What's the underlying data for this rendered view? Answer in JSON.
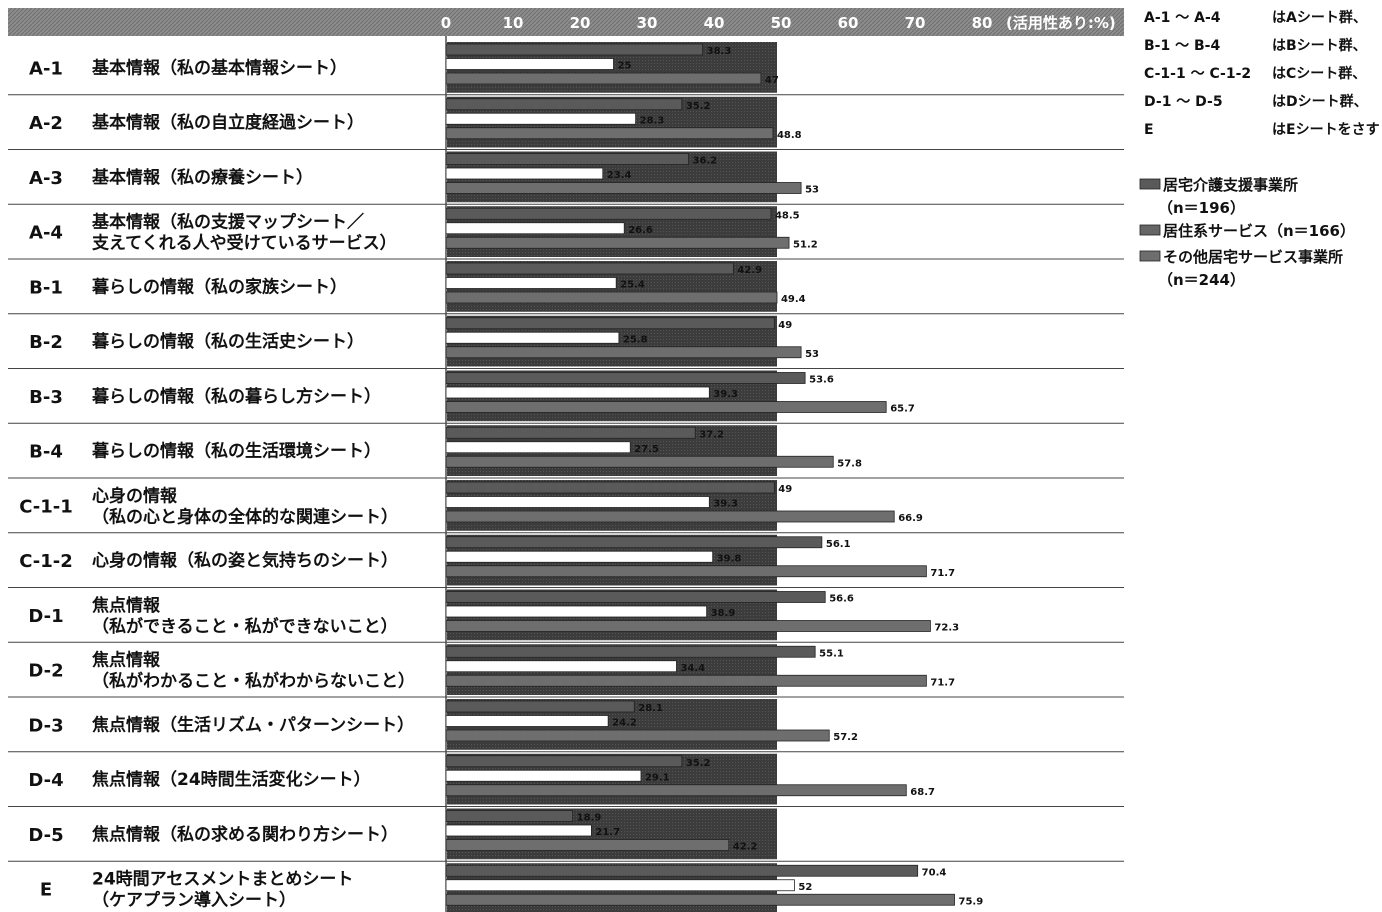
{
  "chart_data": {
    "type": "bar",
    "orientation": "horizontal",
    "axis_unit_label": "(活用性あり:%)",
    "x_ticks": [
      0,
      10,
      20,
      30,
      40,
      50,
      60,
      70,
      80
    ],
    "xlim": [
      0,
      100
    ],
    "categories": [
      {
        "code": "A-1",
        "label": [
          "基本情報（私の基本情報シート）"
        ]
      },
      {
        "code": "A-2",
        "label": [
          "基本情報（私の自立度経過シート）"
        ]
      },
      {
        "code": "A-3",
        "label": [
          "基本情報（私の療養シート）"
        ]
      },
      {
        "code": "A-4",
        "label": [
          "基本情報（私の支援マップシート／",
          "支えてくれる人や受けているサービス）"
        ]
      },
      {
        "code": "B-1",
        "label": [
          "暮らしの情報（私の家族シート）"
        ]
      },
      {
        "code": "B-2",
        "label": [
          "暮らしの情報（私の生活史シート）"
        ]
      },
      {
        "code": "B-3",
        "label": [
          "暮らしの情報（私の暮らし方シート）"
        ]
      },
      {
        "code": "B-4",
        "label": [
          "暮らしの情報（私の生活環境シート）"
        ]
      },
      {
        "code": "C-1-1",
        "label": [
          "心身の情報",
          "（私の心と身体の全体的な関連シート）"
        ]
      },
      {
        "code": "C-1-2",
        "label": [
          "心身の情報（私の姿と気持ちのシート）"
        ]
      },
      {
        "code": "D-1",
        "label": [
          "焦点情報",
          "（私ができること・私ができないこと）"
        ]
      },
      {
        "code": "D-2",
        "label": [
          "焦点情報",
          "（私がわかること・私がわからないこと）"
        ]
      },
      {
        "code": "D-3",
        "label": [
          "焦点情報（生活リズム・パターンシート）"
        ]
      },
      {
        "code": "D-4",
        "label": [
          "焦点情報（24時間生活変化シート）"
        ]
      },
      {
        "code": "D-5",
        "label": [
          "焦点情報（私の求める関わり方シート）"
        ]
      },
      {
        "code": "E",
        "label": [
          "24時間アセスメントまとめシート",
          "（ケアプラン導入シート）"
        ]
      }
    ],
    "series": [
      {
        "name": "居宅介護支援事業所",
        "n": "（n＝196）",
        "color": "#5a5a5a",
        "values": [
          38.3,
          35.2,
          36.2,
          48.5,
          42.9,
          49,
          53.6,
          37.2,
          49,
          56.1,
          56.6,
          55.1,
          28.1,
          35.2,
          18.9,
          70.4
        ]
      },
      {
        "name": "居住系サービス",
        "n": "（n＝166）",
        "color": "#ffffff",
        "values": [
          25,
          28.3,
          23.4,
          26.6,
          25.4,
          25.8,
          39.3,
          27.5,
          39.3,
          39.8,
          38.9,
          34.4,
          24.2,
          29.1,
          21.7,
          52
        ]
      },
      {
        "name": "その他居宅サービス事業所",
        "n": "（n＝244）",
        "color": "#6e6e6e",
        "values": [
          47,
          48.8,
          53,
          51.2,
          49.4,
          53,
          65.7,
          57.8,
          66.9,
          71.7,
          72.3,
          71.7,
          57.2,
          68.7,
          42.2,
          75.9
        ]
      }
    ],
    "notes": [
      {
        "range": "A-1 〜 A-4",
        "text": "はAシート群、"
      },
      {
        "range": "B-1 〜 B-4",
        "text": "はBシート群、"
      },
      {
        "range": "C-1-1 〜 C-1-2",
        "text": "はCシート群、"
      },
      {
        "range": "D-1 〜 D-5",
        "text": "はDシート群、"
      },
      {
        "range": "E",
        "text": "はEシートをさす"
      }
    ]
  },
  "colors": {
    "header_bg": "#8c8c8c",
    "row_band": "#3c3c3c",
    "row_divider": "#444444"
  }
}
